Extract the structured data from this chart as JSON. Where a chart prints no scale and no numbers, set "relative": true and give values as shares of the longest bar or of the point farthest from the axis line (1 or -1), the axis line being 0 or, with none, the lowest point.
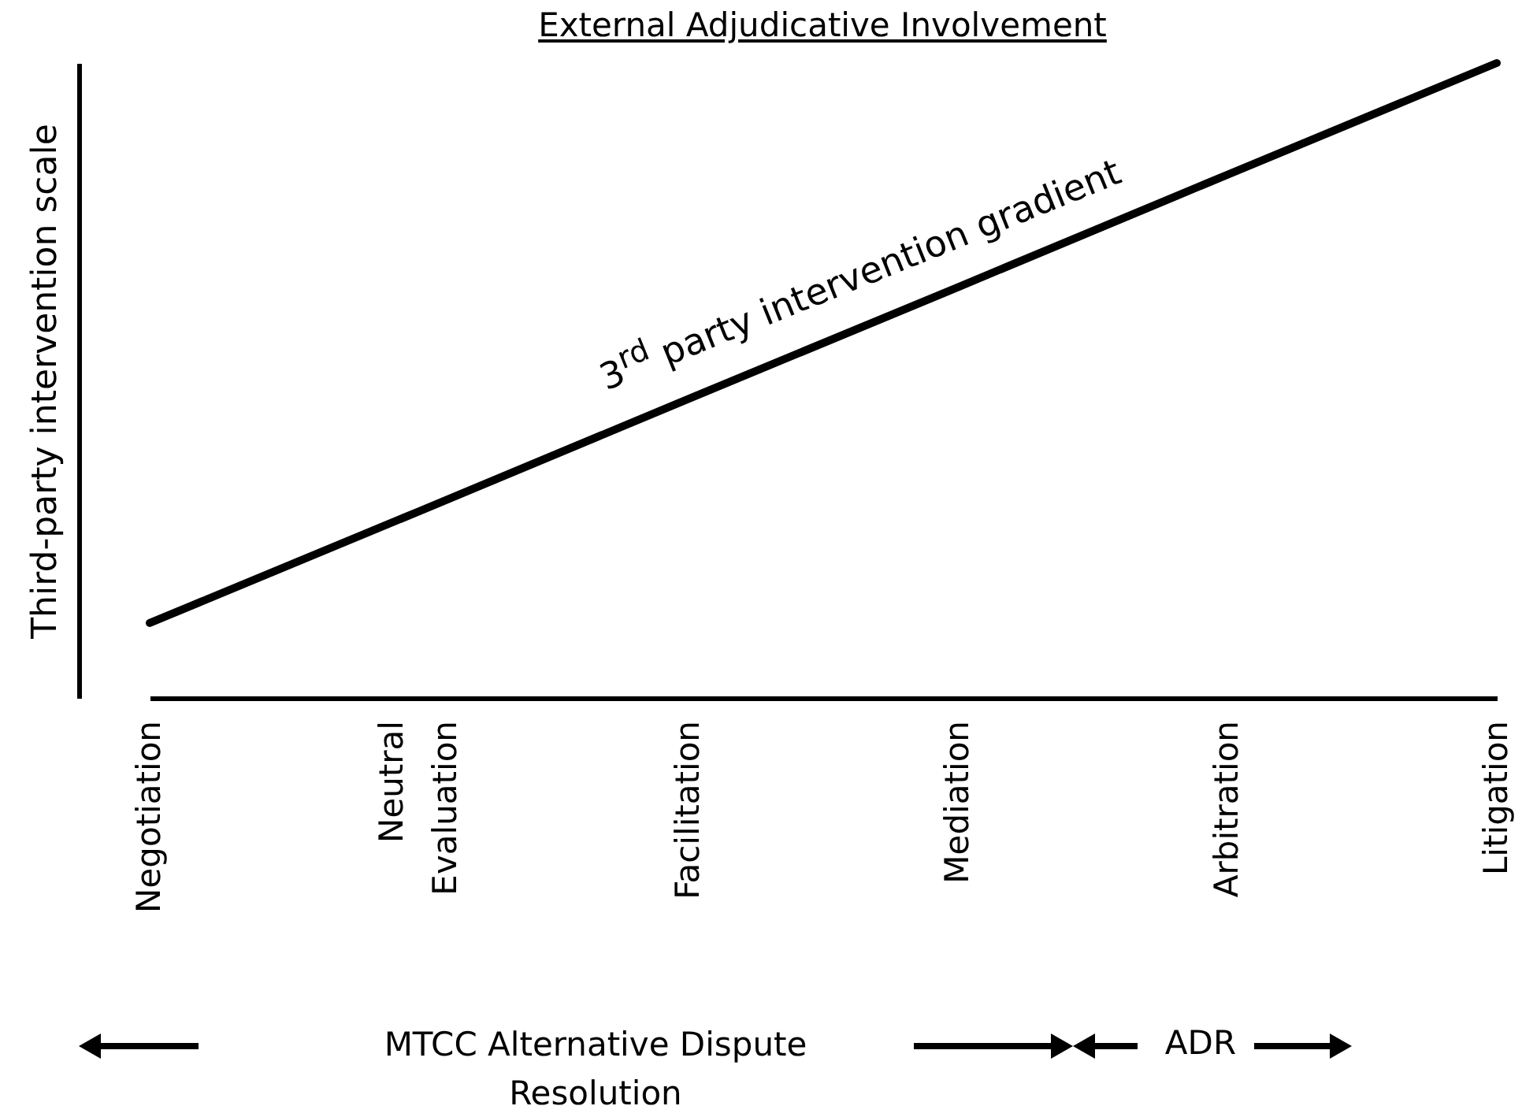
{
  "chart_data": {
    "type": "line",
    "title": "External Adjudicative Involvement",
    "ylabel": "Third-party intervention scale",
    "categories": [
      "Negotiation",
      "Neutral Evaluation",
      "Facilitation",
      "Mediation",
      "Arbitration",
      "Litigation"
    ],
    "relative": true,
    "series": [
      {
        "color": "#000000",
        "values": [
          0.118,
          0.294,
          0.471,
          0.647,
          0.824,
          1.0
        ]
      }
    ],
    "annotations": [
      "3$^{rd}$ party intervention gradient",
      "MTCC Alternative Dispute Resolution",
      "ADR"
    ],
    "marker": "none",
    "line_style": "solid",
    "grid": false
  }
}
